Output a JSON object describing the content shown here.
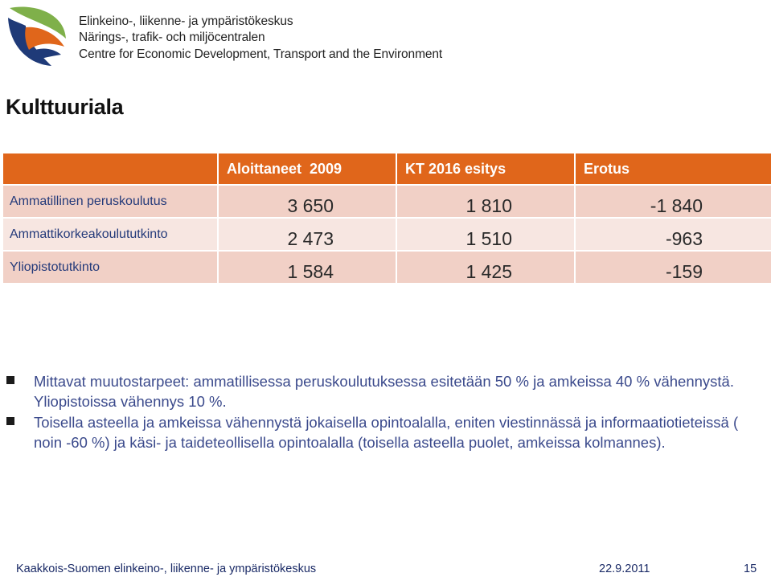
{
  "header": {
    "org_line_1": "Elinkeino-, liikenne- ja ympäristökeskus",
    "org_line_2": "Närings-, trafik- och miljöcentralen",
    "org_line_3": "Centre for Economic Development, Transport and the Environment",
    "logo_icon": "ely-leaf-logo-icon",
    "logo_colors": [
      "#7fb04a",
      "#e0661b",
      "#1f3a78"
    ]
  },
  "slide": {
    "title": "Kulttuuriala"
  },
  "table": {
    "header_color": "#e0661b",
    "columns": [
      "",
      "Aloittaneet  2009",
      "KT 2016 esitys",
      "Erotus"
    ],
    "rows": [
      {
        "label": "Ammatillinen peruskoulutus",
        "aloittaneet": "3 650",
        "kt2016": "1 810",
        "erotus": "-1 840"
      },
      {
        "label": "Ammattikorkeakoulututkinto",
        "aloittaneet": "2 473",
        "kt2016": "1 510",
        "erotus": "-963"
      },
      {
        "label": "Yliopistotutkinto",
        "aloittaneet": "1 584",
        "kt2016": "1 425",
        "erotus": "-159"
      }
    ]
  },
  "bullets": [
    "Mittavat muutostarpeet: ammatillisessa peruskoulutuksessa esitetään 50 % ja amkeissa 40 % vähennystä. Yliopistoissa vähennys 10 %.",
    "Toisella asteella ja amkeissa vähennystä jokaisella opintoalalla, eniten viestinnässä ja informaatiotieteissä ( noin  -60 %) ja käsi- ja taideteollisella opintoalalla (toisella asteella puolet, amkeissa kolmannes)."
  ],
  "footer": {
    "organization": "Kaakkois-Suomen elinkeino-, liikenne- ja ympäristökeskus",
    "date": "22.9.2011",
    "page": "15"
  }
}
